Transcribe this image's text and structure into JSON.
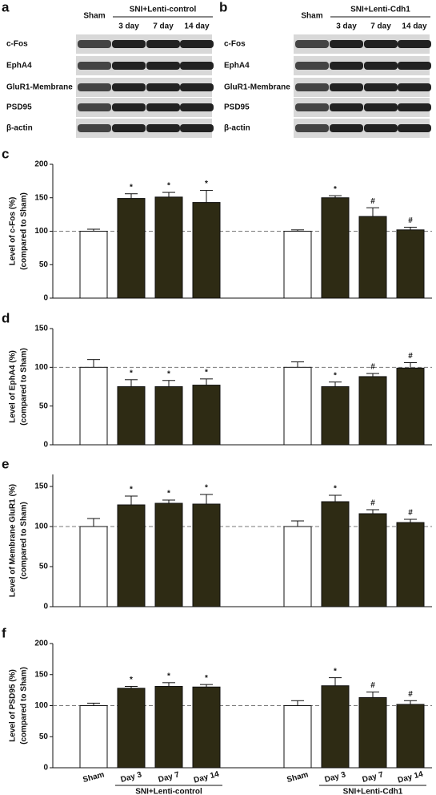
{
  "blots": [
    {
      "panel": "a",
      "sham": "Sham",
      "group": "SNI+Lenti-control",
      "days": [
        "3 day",
        "7 day",
        "14 day"
      ],
      "rows": [
        "c-Fos",
        "EphA4",
        "GluR1-Membrane",
        "PSD95",
        "β-actin"
      ]
    },
    {
      "panel": "b",
      "sham": "Sham",
      "group": "SNI+Lenti-Cdh1",
      "days": [
        "3 day",
        "7 day",
        "14 day"
      ],
      "rows": [
        "c-Fos",
        "EphA4",
        "GluR1-Membrane",
        "PSD95",
        "β-actin"
      ]
    }
  ],
  "chart_data": [
    {
      "type": "bar",
      "panel": "c",
      "ylabel": [
        "Level of c-Fos (%)",
        "(compared to Sham)"
      ],
      "categories": [
        null,
        null,
        null,
        null,
        null,
        null,
        null,
        null
      ],
      "series": [
        {
          "values": [
            100,
            149,
            151,
            143,
            100,
            150,
            122,
            102
          ],
          "errors": [
            3,
            7,
            7,
            18,
            2,
            3,
            13,
            4
          ],
          "colors": [
            "#ffffff",
            "#2e2b14",
            "#2e2b14",
            "#2e2b14",
            "#ffffff",
            "#2e2b14",
            "#2e2b14",
            "#2e2b14"
          ],
          "annotations": [
            null,
            "*",
            "*",
            "*",
            null,
            "*",
            "#",
            "#"
          ]
        }
      ],
      "ylim": [
        0,
        200
      ],
      "yticks": [
        0,
        50,
        100,
        150,
        200
      ],
      "reference_line": 100
    },
    {
      "type": "bar",
      "panel": "d",
      "ylabel": [
        "Level of EphA4 (%)",
        "(compared to Sham)"
      ],
      "categories": [
        null,
        null,
        null,
        null,
        null,
        null,
        null,
        null
      ],
      "series": [
        {
          "values": [
            100,
            75,
            75,
            77,
            100,
            75,
            88,
            99
          ],
          "errors": [
            10,
            9,
            8,
            8,
            7,
            6,
            4,
            7
          ],
          "colors": [
            "#ffffff",
            "#2e2b14",
            "#2e2b14",
            "#2e2b14",
            "#ffffff",
            "#2e2b14",
            "#2e2b14",
            "#2e2b14"
          ],
          "annotations": [
            null,
            "*",
            "*",
            "*",
            null,
            "*",
            "#",
            "#"
          ]
        }
      ],
      "ylim": [
        0,
        150
      ],
      "yticks": [
        0,
        50,
        100,
        150
      ],
      "reference_line": 100
    },
    {
      "type": "bar",
      "panel": "e",
      "ylabel": [
        "Level of Membrane GluR1 (%)",
        "(compared to Sham)"
      ],
      "categories": [
        null,
        null,
        null,
        null,
        null,
        null,
        null,
        null
      ],
      "series": [
        {
          "values": [
            100,
            127,
            129,
            128,
            100,
            131,
            116,
            105
          ],
          "errors": [
            10,
            11,
            4,
            12,
            7,
            8,
            5,
            4
          ],
          "colors": [
            "#ffffff",
            "#2e2b14",
            "#2e2b14",
            "#2e2b14",
            "#ffffff",
            "#2e2b14",
            "#2e2b14",
            "#2e2b14"
          ],
          "annotations": [
            null,
            "*",
            "*",
            "*",
            null,
            "*",
            "#",
            "#"
          ]
        }
      ],
      "ylim": [
        0,
        165
      ],
      "yticks": [
        0,
        50,
        100,
        150
      ],
      "reference_line": 100
    },
    {
      "type": "bar",
      "panel": "f",
      "ylabel": [
        "Level of PSD95 (%)",
        "(compared to Sham)"
      ],
      "categories": [
        "Sham",
        "Day 3",
        "Day 7",
        "Day 14",
        "Sham",
        "Day 3",
        "Day 7",
        "Day 14"
      ],
      "groups": [
        "SNI+Lenti-control",
        "SNI+Lenti-Cdh1"
      ],
      "series": [
        {
          "values": [
            100,
            128,
            131,
            130,
            100,
            132,
            113,
            102
          ],
          "errors": [
            4,
            3,
            6,
            4,
            8,
            13,
            9,
            6
          ],
          "colors": [
            "#ffffff",
            "#2e2b14",
            "#2e2b14",
            "#2e2b14",
            "#ffffff",
            "#2e2b14",
            "#2e2b14",
            "#2e2b14"
          ],
          "annotations": [
            null,
            "*",
            "*",
            "*",
            null,
            "*",
            "#",
            "#"
          ]
        }
      ],
      "ylim": [
        0,
        200
      ],
      "yticks": [
        0,
        50,
        100,
        150,
        200
      ],
      "reference_line": 100
    }
  ]
}
